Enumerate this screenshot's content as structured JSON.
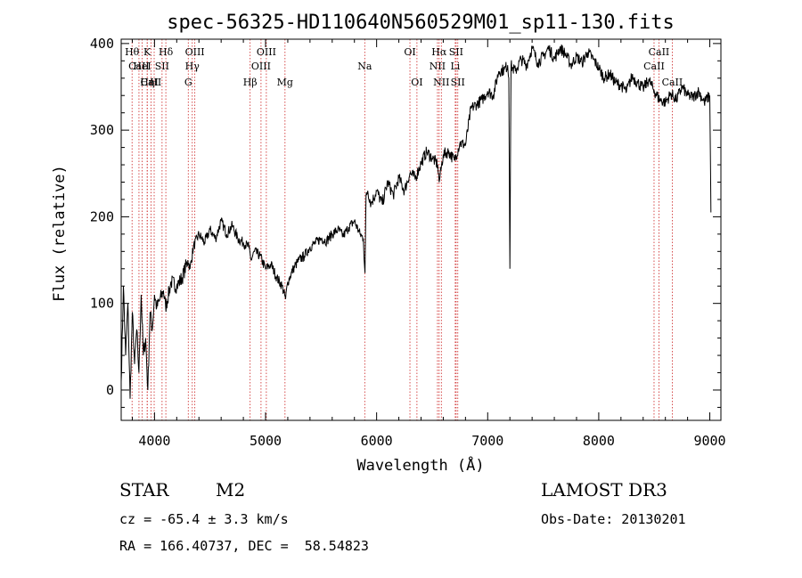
{
  "chart_data": {
    "type": "line",
    "title": "spec-56325-HD110640N560529M01_sp11-130.fits",
    "xlabel": "Wavelength (Å)",
    "ylabel": "Flux (relative)",
    "xlim": [
      3700,
      9100
    ],
    "ylim": [
      -35,
      405
    ],
    "xticks": [
      4000,
      5000,
      6000,
      7000,
      8000,
      9000
    ],
    "yticks": [
      0,
      100,
      200,
      300,
      400
    ],
    "xtick_labels": [
      "4000",
      "5000",
      "6000",
      "7000",
      "8000",
      "9000"
    ],
    "ytick_labels": [
      "0",
      "100",
      "200",
      "300",
      "400"
    ],
    "series": [
      {
        "name": "flux",
        "x": [
          3700,
          3720,
          3740,
          3760,
          3780,
          3800,
          3820,
          3840,
          3860,
          3880,
          3900,
          3920,
          3940,
          3960,
          3980,
          4000,
          4020,
          4050,
          4080,
          4100,
          4150,
          4200,
          4250,
          4300,
          4320,
          4350,
          4400,
          4450,
          4500,
          4550,
          4600,
          4650,
          4700,
          4750,
          4800,
          4850,
          4870,
          4900,
          4950,
          5000,
          5050,
          5100,
          5150,
          5180,
          5200,
          5250,
          5300,
          5350,
          5400,
          5450,
          5500,
          5550,
          5600,
          5650,
          5700,
          5750,
          5800,
          5850,
          5880,
          5895,
          5905,
          5920,
          5950,
          6000,
          6050,
          6100,
          6150,
          6200,
          6250,
          6300,
          6350,
          6400,
          6450,
          6500,
          6550,
          6563,
          6600,
          6650,
          6700,
          6750,
          6800,
          6850,
          6900,
          6950,
          7000,
          7050,
          7100,
          7150,
          7180,
          7190,
          7200,
          7210,
          7220,
          7250,
          7300,
          7350,
          7400,
          7450,
          7500,
          7550,
          7600,
          7650,
          7700,
          7750,
          7800,
          7850,
          7900,
          7950,
          8000,
          8050,
          8100,
          8150,
          8200,
          8250,
          8300,
          8350,
          8400,
          8450,
          8500,
          8550,
          8600,
          8650,
          8700,
          8750,
          8800,
          8850,
          8900,
          8950,
          9000,
          9010
        ],
        "values": [
          10,
          120,
          40,
          100,
          -10,
          90,
          30,
          70,
          20,
          110,
          40,
          60,
          0,
          90,
          70,
          110,
          95,
          105,
          115,
          95,
          125,
          120,
          130,
          150,
          140,
          165,
          180,
          170,
          185,
          175,
          195,
          180,
          190,
          175,
          170,
          165,
          150,
          160,
          155,
          140,
          145,
          130,
          120,
          105,
          125,
          140,
          150,
          155,
          165,
          170,
          175,
          172,
          180,
          185,
          178,
          188,
          195,
          180,
          175,
          135,
          225,
          230,
          215,
          230,
          215,
          240,
          225,
          245,
          230,
          250,
          245,
          262,
          275,
          268,
          260,
          240,
          272,
          275,
          265,
          285,
          283,
          325,
          330,
          335,
          345,
          340,
          368,
          370,
          375,
          360,
          140,
          375,
          372,
          368,
          382,
          375,
          395,
          378,
          385,
          395,
          382,
          395,
          388,
          375,
          385,
          378,
          390,
          382,
          372,
          360,
          365,
          355,
          352,
          345,
          362,
          355,
          348,
          358,
          345,
          335,
          332,
          342,
          335,
          350,
          340,
          338,
          345,
          332,
          340,
          205
        ]
      }
    ],
    "spectral_lines": [
      {
        "label": "Hθ",
        "wl": 3798,
        "row": 1
      },
      {
        "label": "CaII",
        "wl": 3860,
        "row": 2
      },
      {
        "label": "CaII",
        "wl": 3968,
        "row": 3
      },
      {
        "label": "K",
        "wl": 3934,
        "row": 1
      },
      {
        "label": "HeI",
        "wl": 3889,
        "row": 2
      },
      {
        "label": "Hη",
        "wl": 3935,
        "row": 3
      },
      {
        "label": "SII",
        "wl": 4068,
        "row": 2
      },
      {
        "label": "H",
        "wl": 3997,
        "row": 3
      },
      {
        "label": "Hδ",
        "wl": 4102,
        "row": 1
      },
      {
        "label": "OIII",
        "wl": 4363,
        "row": 1
      },
      {
        "label": "Hγ",
        "wl": 4340,
        "row": 2
      },
      {
        "label": "G",
        "wl": 4304,
        "row": 3
      },
      {
        "label": "Hβ",
        "wl": 4861,
        "row": 3
      },
      {
        "label": "OIII",
        "wl": 5007,
        "row": 1
      },
      {
        "label": "OIII",
        "wl": 4959,
        "row": 2
      },
      {
        "label": "Mg",
        "wl": 5175,
        "row": 3
      },
      {
        "label": "Na",
        "wl": 5893,
        "row": 2
      },
      {
        "label": "OI",
        "wl": 6300,
        "row": 1
      },
      {
        "label": "OI",
        "wl": 6363,
        "row": 3
      },
      {
        "label": "Hα",
        "wl": 6563,
        "row": 1
      },
      {
        "label": "NII",
        "wl": 6548,
        "row": 2
      },
      {
        "label": "NII",
        "wl": 6583,
        "row": 3
      },
      {
        "label": "SII",
        "wl": 6716,
        "row": 1
      },
      {
        "label": "Li",
        "wl": 6708,
        "row": 2
      },
      {
        "label": "SII",
        "wl": 6731,
        "row": 3
      },
      {
        "label": "CaII",
        "wl": 8542,
        "row": 1
      },
      {
        "label": "CaII",
        "wl": 8498,
        "row": 2
      },
      {
        "label": "CaII",
        "wl": 8662,
        "row": 3
      }
    ],
    "line_color": "#000000",
    "marker_color": "#cc2222"
  },
  "info": {
    "object_class": "STAR",
    "subclass": "M2",
    "survey": "LAMOST DR3",
    "cz": "cz = -65.4 ± 3.3 km/s",
    "obs_date": "Obs-Date: 20130201",
    "coords": "RA = 166.40737, DEC =  58.54823"
  }
}
